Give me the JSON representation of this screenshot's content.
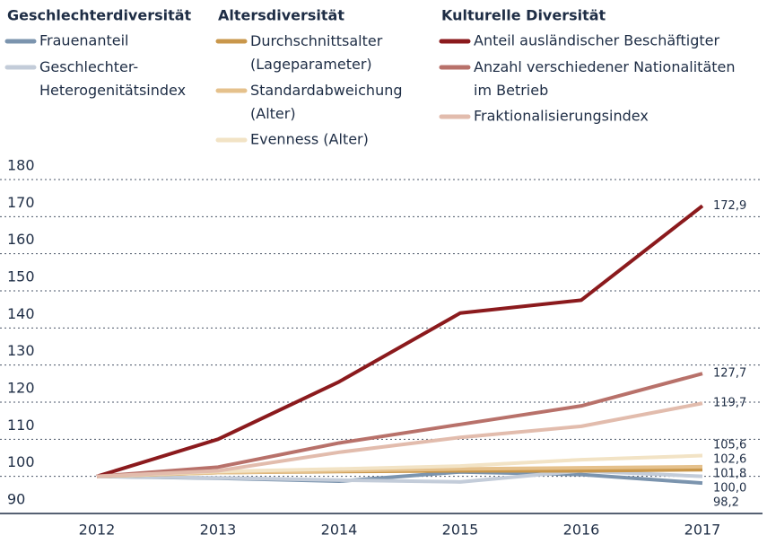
{
  "chart_data": {
    "type": "line",
    "legend_groups": [
      "Geschlechterdiversität",
      "Altersdiversität",
      "Kulturelle Diversität"
    ],
    "categories": [
      "2012",
      "2013",
      "2014",
      "2015",
      "2016",
      "2017"
    ],
    "ylim": [
      90,
      180
    ],
    "yticks": [
      90,
      100,
      110,
      120,
      130,
      140,
      150,
      160,
      170,
      180
    ],
    "grid": true,
    "series": [
      {
        "name": "Frauenanteil",
        "color": "#7b94ae",
        "values": [
          100,
          99.5,
          98.7,
          101.2,
          100.5,
          98.2
        ],
        "value_labels": [
          null,
          null,
          null,
          null,
          null,
          "98,2"
        ]
      },
      {
        "name": "Geschlechter-\nHeterogenitätsindex",
        "color": "#c3ccd9",
        "values": [
          100,
          99.6,
          99,
          98.5,
          101.5,
          100.0
        ],
        "value_labels": [
          null,
          null,
          null,
          null,
          null,
          "100,0"
        ]
      },
      {
        "name": "Durchschnittsalter\n(Lageparameter)",
        "color": "#c9974b",
        "values": [
          100,
          101,
          101.3,
          101.5,
          101.5,
          101.8
        ],
        "value_labels": [
          null,
          null,
          null,
          null,
          null,
          "101,8"
        ]
      },
      {
        "name": "Standardabweichung\n(Alter)",
        "color": "#e5c18c",
        "values": [
          100,
          101,
          101.5,
          102,
          102.3,
          102.6
        ],
        "value_labels": [
          null,
          null,
          null,
          null,
          null,
          "102,6"
        ]
      },
      {
        "name": "Evenness (Alter)",
        "color": "#f2e3c5",
        "values": [
          100,
          101.3,
          102,
          102.8,
          104.5,
          105.6
        ],
        "value_labels": [
          null,
          null,
          null,
          null,
          null,
          "105,6"
        ]
      },
      {
        "name": "Anteil ausländischer Beschäftigter",
        "color": "#8b1a1d",
        "values": [
          100,
          110,
          125.5,
          144,
          147.5,
          172.9
        ],
        "value_labels": [
          null,
          null,
          null,
          null,
          null,
          "172,9"
        ]
      },
      {
        "name": "Anzahl verschiedener Nationalitäten\nim Betrieb",
        "color": "#b8716a",
        "values": [
          100,
          102.5,
          109,
          114,
          119,
          127.7
        ],
        "value_labels": [
          null,
          null,
          null,
          null,
          null,
          "127,7"
        ]
      },
      {
        "name": "Fraktionalisierungsindex",
        "color": "#e2bcad",
        "values": [
          100,
          101.5,
          106.5,
          110.5,
          113.5,
          119.7
        ],
        "value_labels": [
          null,
          null,
          null,
          null,
          null,
          "119,7"
        ]
      }
    ]
  }
}
